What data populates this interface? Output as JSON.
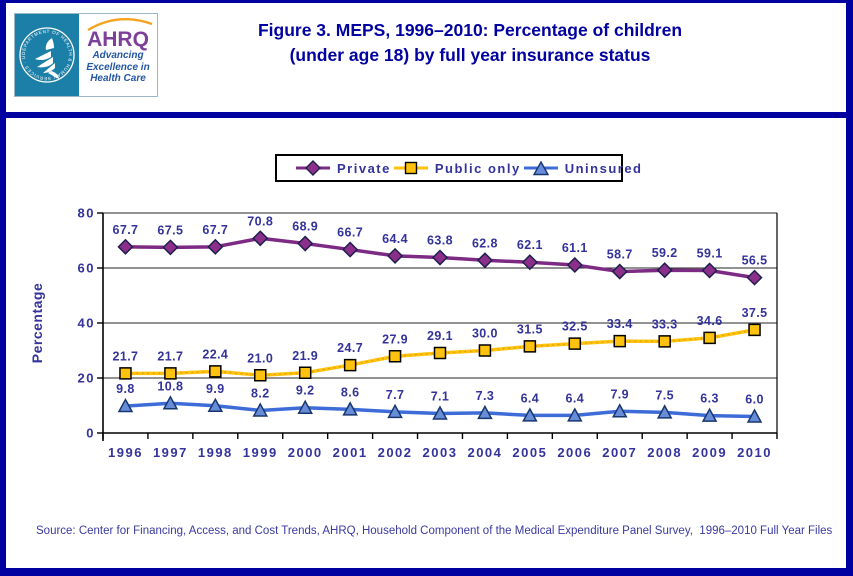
{
  "header": {
    "title_line1": "Figure 3. MEPS, 1996–2010: Percentage of children",
    "title_line2": "(under age 18) by full year insurance status",
    "logo": {
      "org": "AHRQ",
      "seal_text": "DEPARTMENT OF HEALTH & HUMAN SERVICES · USA",
      "tagline1": "Advancing",
      "tagline2": "Excellence in",
      "tagline3": "Health Care"
    }
  },
  "colors": {
    "page_border": "#0000A0",
    "title": "#0202A0",
    "label": "#33339B",
    "grid": "#262626",
    "axis": "#000000"
  },
  "chart_data": {
    "type": "line",
    "title": "Figure 3. MEPS, 1996–2010: Percentage of children (under age 18) by full year insurance status",
    "xlabel": "",
    "ylabel": "Percentage",
    "ylim": [
      0,
      80
    ],
    "yticks": [
      0,
      20,
      40,
      60,
      80
    ],
    "grid": true,
    "legend_position": "top",
    "categories": [
      "1996",
      "1997",
      "1998",
      "1999",
      "2000",
      "2001",
      "2002",
      "2003",
      "2004",
      "2005",
      "2006",
      "2007",
      "2008",
      "2009",
      "2010"
    ],
    "series": [
      {
        "name": "Private",
        "marker": "diamond",
        "color": "#7D2A84",
        "marker_fill": "#8B2F8B",
        "marker_stroke": "#1F1F4E",
        "values": [
          67.7,
          67.5,
          67.7,
          70.8,
          68.9,
          66.7,
          64.4,
          63.8,
          62.8,
          62.1,
          61.1,
          58.7,
          59.2,
          59.1,
          56.5
        ]
      },
      {
        "name": "Public only",
        "marker": "square",
        "color": "#FFC20E",
        "marker_fill": "#FFC20E",
        "marker_stroke": "#000000",
        "values": [
          21.7,
          21.7,
          22.4,
          21.0,
          21.9,
          24.7,
          27.9,
          29.1,
          30.0,
          31.5,
          32.5,
          33.4,
          33.3,
          34.6,
          37.5
        ]
      },
      {
        "name": "Uninsured",
        "marker": "triangle",
        "color": "#3D6CD8",
        "marker_fill": "#688DD8",
        "marker_stroke": "#17366E",
        "values": [
          9.8,
          10.8,
          9.9,
          8.2,
          9.2,
          8.6,
          7.7,
          7.1,
          7.3,
          6.4,
          6.4,
          7.9,
          7.5,
          6.3,
          6.0
        ]
      }
    ]
  },
  "footer": {
    "source": "Source: Center for Financing, Access, and Cost Trends, AHRQ, Household Component of the Medical Expenditure Panel Survey,  1996–2010 Full Year Files"
  }
}
